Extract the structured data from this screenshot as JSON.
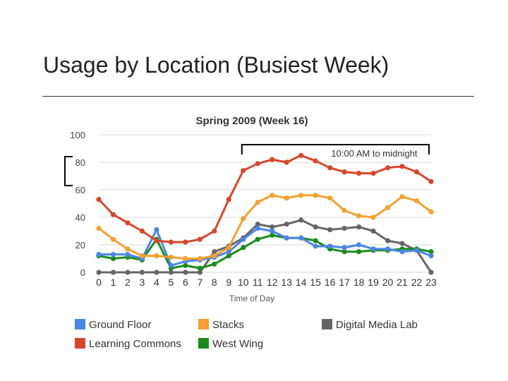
{
  "slide": {
    "title": "Usage by Location (Busiest Week)"
  },
  "chart_data": {
    "type": "line",
    "title": "Spring 2009 (Week 16)",
    "xlabel": "Time of Day",
    "ylabel": "",
    "x": [
      0,
      1,
      2,
      3,
      4,
      5,
      6,
      7,
      8,
      9,
      10,
      11,
      12,
      13,
      14,
      15,
      16,
      17,
      18,
      19,
      20,
      21,
      22,
      23
    ],
    "ylim": [
      0,
      100
    ],
    "yticks": [
      0,
      20,
      40,
      60,
      80,
      100
    ],
    "grid": true,
    "legend_position": "bottom",
    "annotations": [
      {
        "text": "10:00 AM to midnight",
        "x_range": [
          10,
          23
        ]
      }
    ],
    "series": [
      {
        "name": "Ground Floor",
        "color": "#4a86e8",
        "values": [
          13,
          13,
          13,
          10,
          31,
          5,
          8,
          9,
          11,
          15,
          24,
          32,
          30,
          25,
          25,
          19,
          19,
          18,
          20,
          17,
          17,
          15,
          16,
          12
        ]
      },
      {
        "name": "Learning Commons",
        "color": "#d9452b",
        "values": [
          53,
          42,
          36,
          30,
          23,
          22,
          22,
          24,
          30,
          53,
          74,
          79,
          82,
          80,
          85,
          81,
          76,
          73,
          72,
          72,
          76,
          77,
          73,
          66
        ]
      },
      {
        "name": "Stacks",
        "color": "#f6a02d",
        "values": [
          32,
          24,
          17,
          12,
          12,
          11,
          10,
          10,
          12,
          18,
          39,
          51,
          56,
          54,
          56,
          56,
          54,
          45,
          41,
          40,
          47,
          55,
          52,
          44
        ]
      },
      {
        "name": "West Wing",
        "color": "#1a8c1a",
        "values": [
          12,
          10,
          11,
          9,
          24,
          3,
          5,
          3,
          6,
          12,
          18,
          24,
          27,
          25,
          25,
          23,
          17,
          15,
          15,
          16,
          16,
          17,
          17,
          15
        ]
      },
      {
        "name": "Digital Media Lab",
        "color": "#666666",
        "values": [
          0,
          0,
          0,
          0,
          0,
          0,
          0,
          0,
          15,
          19,
          25,
          35,
          33,
          35,
          38,
          33,
          31,
          32,
          33,
          30,
          23,
          21,
          16,
          0
        ]
      }
    ]
  }
}
